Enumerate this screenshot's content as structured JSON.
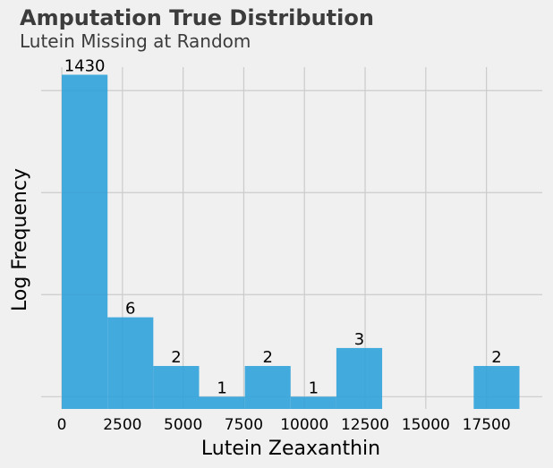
{
  "chart_data": {
    "type": "bar",
    "title": "Amputation True Distribution",
    "subtitle": "Lutein Missing at Random",
    "xlabel": "Lutein Zeaxanthin",
    "ylabel": "Log Frequency",
    "yscale": "log",
    "grid": true,
    "xlim": [
      -850,
      19800
    ],
    "ylim_log10": [
      -0.12,
      3.23
    ],
    "x_ticks": [
      0,
      2500,
      5000,
      7500,
      10000,
      12500,
      15000,
      17500
    ],
    "x_tick_labels": [
      "0",
      "2500",
      "5000",
      "7500",
      "10000",
      "12500",
      "15000",
      "17500"
    ],
    "y_ticks": [
      1,
      10,
      100,
      1000
    ],
    "bins": [
      {
        "x0": 0,
        "x1": 1886,
        "count": 1430,
        "label": "1430"
      },
      {
        "x0": 1886,
        "x1": 3772,
        "count": 6,
        "label": "6"
      },
      {
        "x0": 3772,
        "x1": 5658,
        "count": 2,
        "label": "2"
      },
      {
        "x0": 5658,
        "x1": 7544,
        "count": 1,
        "label": "1"
      },
      {
        "x0": 7544,
        "x1": 9430,
        "count": 2,
        "label": "2"
      },
      {
        "x0": 9430,
        "x1": 11316,
        "count": 1,
        "label": "1"
      },
      {
        "x0": 11316,
        "x1": 13202,
        "count": 3,
        "label": "3"
      },
      {
        "x0": 13202,
        "x1": 15088,
        "count": 0,
        "label": ""
      },
      {
        "x0": 15088,
        "x1": 16974,
        "count": 0,
        "label": ""
      },
      {
        "x0": 16974,
        "x1": 18860,
        "count": 2,
        "label": "2"
      }
    ],
    "bar_color": "#30a2da"
  }
}
